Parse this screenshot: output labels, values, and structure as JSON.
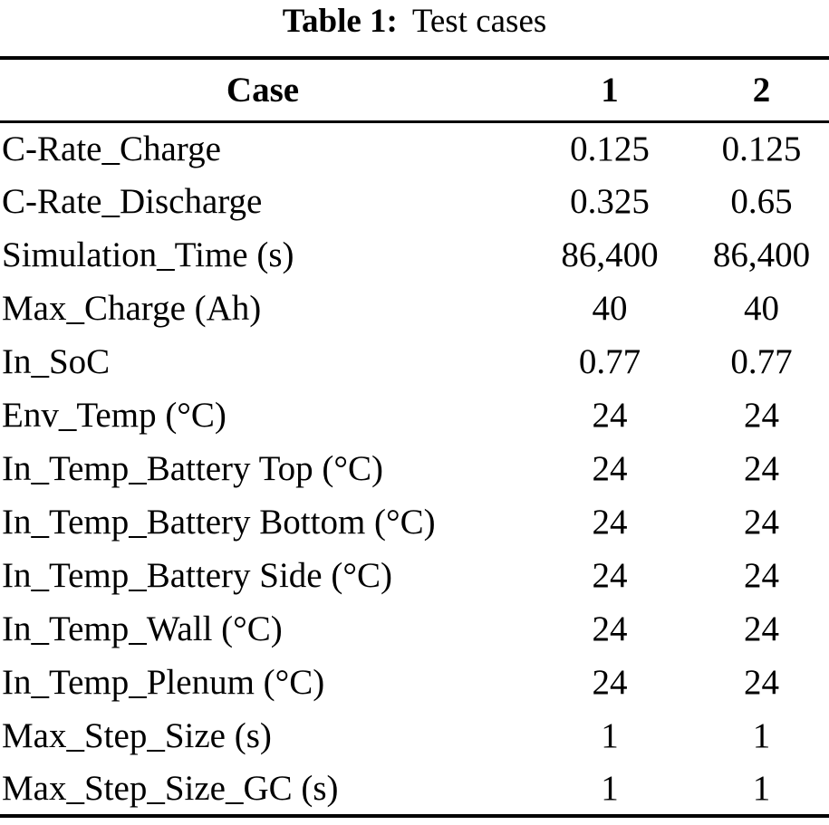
{
  "table": {
    "caption": {
      "label": "Table 1:",
      "text": "Test cases"
    },
    "header": {
      "case": "Case",
      "col1": "1",
      "col2": "2"
    },
    "rows": [
      {
        "label": "C-Rate_Charge",
        "c1": "0.125",
        "c2": "0.125"
      },
      {
        "label": "C-Rate_Discharge",
        "c1": "0.325",
        "c2": "0.65"
      },
      {
        "label": "Simulation_Time (s)",
        "c1": "86,400",
        "c2": "86,400"
      },
      {
        "label": "Max_Charge (Ah)",
        "c1": "40",
        "c2": "40"
      },
      {
        "label": "In_SoC",
        "c1": "0.77",
        "c2": "0.77"
      },
      {
        "label": "Env_Temp (°C)",
        "c1": "24",
        "c2": "24"
      },
      {
        "label": "In_Temp_Battery Top (°C)",
        "c1": "24",
        "c2": "24"
      },
      {
        "label": "In_Temp_Battery Bottom (°C)",
        "c1": "24",
        "c2": "24"
      },
      {
        "label": "In_Temp_Battery Side (°C)",
        "c1": "24",
        "c2": "24"
      },
      {
        "label": "In_Temp_Wall (°C)",
        "c1": "24",
        "c2": "24"
      },
      {
        "label": "In_Temp_Plenum (°C)",
        "c1": "24",
        "c2": "24"
      },
      {
        "label": "Max_Step_Size (s)",
        "c1": "1",
        "c2": "1"
      },
      {
        "label": "Max_Step_Size_GC (s)",
        "c1": "1",
        "c2": "1"
      }
    ],
    "colors": {
      "text": "#000000",
      "background": "#ffffff",
      "rule": "#000000"
    }
  }
}
